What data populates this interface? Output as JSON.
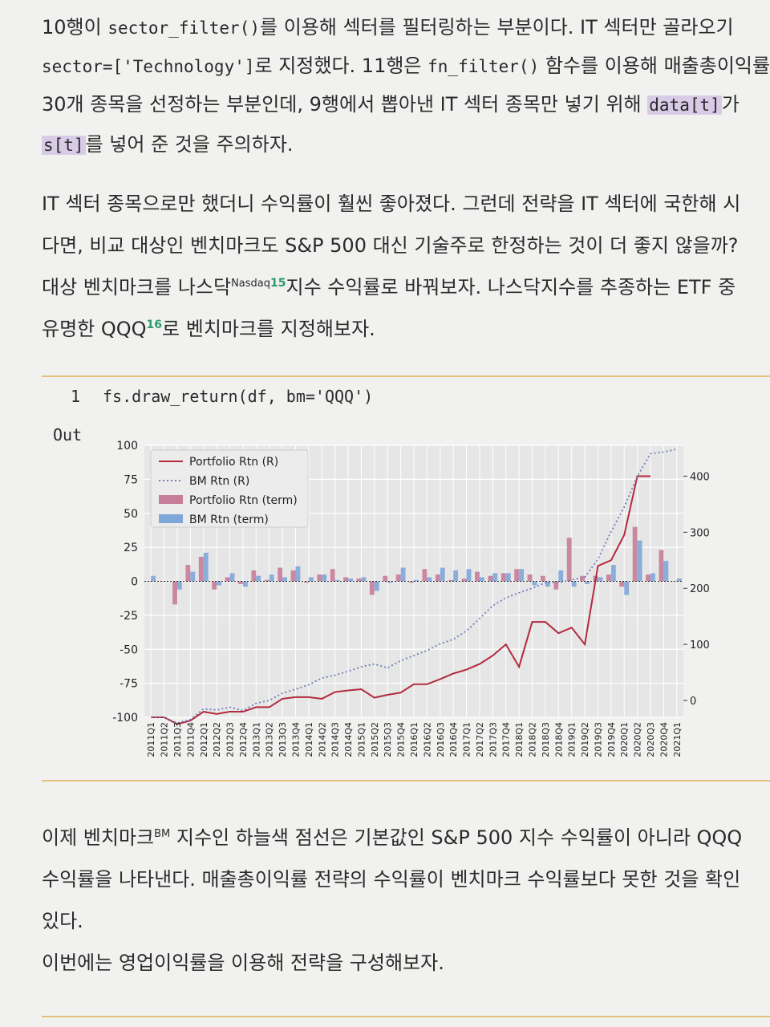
{
  "top_text": {
    "l1_a": "10행이 ",
    "l1_code": "sector_filter()",
    "l1_b": "를 이용해 섹터를 필터링하는 부분이다. IT 섹터만 골라오기",
    "l2_code": "sector=['Technology']",
    "l2_b": "로 지정했다. 11행은 ",
    "l2_code2": "fn_filter()",
    "l2_c": " 함수를 이용해 매출총이익률",
    "l3": "30개 종목을 선정하는 부분인데, 9행에서 뽑아낸 IT 섹터 종목만 넣기 위해 ",
    "l3_code": "data[t]",
    "l3_b": "가",
    "l4_code": "s[t]",
    "l4_b": "를 넣어 준 것을 주의하자."
  },
  "para2": {
    "l1": "IT 섹터 종목으로만 했더니 수익률이 훨씬 좋아졌다. 그런데 전략을 IT 섹터에 국한해 시",
    "l2": "다면, 비교 대상인 벤치마크도 S&P 500 대신 기술주로 한정하는 것이 더 좋지 않을까?",
    "l3_a": "대상 벤치마크를 나스닥",
    "l3_sup": "Nasdaq",
    "l3_fn": "15",
    "l3_b": "지수 수익률로 바꿔보자. 나스닥지수를 추종하는 ETF 중",
    "l4_a": "유명한 QQQ",
    "l4_fn": "16",
    "l4_b": "로 벤치마크를 지정해보자."
  },
  "code": {
    "line_number": "1",
    "text": "fs.draw_return(df, bm='QQQ')"
  },
  "output_label": "Out",
  "bottom_text": {
    "l1_a": "이제 벤치마크",
    "l1_sup": "BM",
    "l1_b": " 지수인 하늘색 점선은 기본값인 S&P 500 지수 수익률이 아니라 QQQ",
    "l2": "수익률을 나타낸다. 매출총이익률 전략의 수익률이 벤치마크 수익률보다 못한 것을 확인",
    "l3": "있다.",
    "l4": "이번에는 영업이익률을 이용해 전략을 구성해보자."
  },
  "chart_data": {
    "type": "bar",
    "categories": [
      "2011Q1",
      "2011Q2",
      "2011Q3",
      "2011Q4",
      "2012Q1",
      "2012Q2",
      "2012Q3",
      "2012Q4",
      "2013Q1",
      "2013Q2",
      "2013Q3",
      "2013Q4",
      "2014Q1",
      "2014Q2",
      "2014Q3",
      "2014Q4",
      "2015Q1",
      "2015Q2",
      "2015Q3",
      "2015Q4",
      "2016Q1",
      "2016Q2",
      "2016Q3",
      "2016Q4",
      "2017Q1",
      "2017Q2",
      "2017Q3",
      "2017Q4",
      "2018Q1",
      "2018Q2",
      "2018Q3",
      "2018Q4",
      "2019Q1",
      "2019Q2",
      "2019Q3",
      "2019Q4",
      "2020Q1",
      "2020Q2",
      "2020Q3",
      "2020Q4",
      "2021Q1"
    ],
    "ylim_left": [
      -100,
      100
    ],
    "yticks_left": [
      100,
      75,
      50,
      25,
      0,
      -25,
      -50,
      -75,
      -100
    ],
    "ylim_right": [
      -30,
      455
    ],
    "yticks_right": [
      400,
      300,
      200,
      100,
      0
    ],
    "grid": true,
    "legend_position": "top-left",
    "colors": {
      "portfolio_line": "#b22a3e",
      "bm_line": "#6e7fb8",
      "portfolio_bar": "#c77d98",
      "bm_bar": "#7fa6d8",
      "background": "#e6e6e6",
      "grid": "#ffffff"
    },
    "series": [
      {
        "name": "Portfolio Rtn (R)",
        "kind": "line",
        "axis": "right",
        "values": [
          -30,
          -30,
          -42,
          -36,
          -20,
          -24,
          -20,
          -20,
          -12,
          -12,
          3,
          6,
          6,
          3,
          15,
          18,
          20,
          5,
          10,
          14,
          29,
          29,
          38,
          48,
          55,
          65,
          80,
          100,
          60,
          140,
          140,
          120,
          130,
          100,
          240,
          250,
          295,
          400,
          400,
          null,
          null
        ]
      },
      {
        "name": "BM Rtn (R)",
        "kind": "line",
        "axis": "right",
        "values": [
          -30,
          -30,
          -40,
          -34,
          -15,
          -17,
          -12,
          -18,
          -5,
          0,
          13,
          20,
          28,
          40,
          45,
          52,
          60,
          65,
          58,
          71,
          80,
          89,
          101,
          109,
          124,
          146,
          169,
          183,
          192,
          200,
          210,
          210,
          215,
          220,
          252,
          301,
          345,
          400,
          440,
          443,
          448
        ]
      },
      {
        "name": "Portfolio Rtn (term)",
        "kind": "bar",
        "axis": "left",
        "values": [
          0,
          0,
          -17,
          12,
          18,
          -6,
          3,
          -2,
          8,
          1,
          10,
          8,
          -1,
          5,
          9,
          3,
          2,
          -10,
          4,
          5,
          -1,
          9,
          5,
          1,
          2,
          7,
          4,
          6,
          9,
          5,
          4,
          -6,
          32,
          4,
          4,
          5,
          -4,
          40,
          5,
          23,
          0
        ]
      },
      {
        "name": "BM Rtn (term)",
        "kind": "bar",
        "axis": "left",
        "values": [
          4,
          0,
          -6,
          7,
          21,
          -3,
          6,
          -4,
          4,
          5,
          3,
          11,
          3,
          5,
          1,
          2,
          3,
          -7,
          -1,
          10,
          1,
          3,
          10,
          8,
          9,
          3,
          6,
          6,
          9,
          -3,
          -4,
          8,
          -4,
          -2,
          3,
          12,
          -10,
          30,
          6,
          15,
          2
        ]
      }
    ]
  }
}
